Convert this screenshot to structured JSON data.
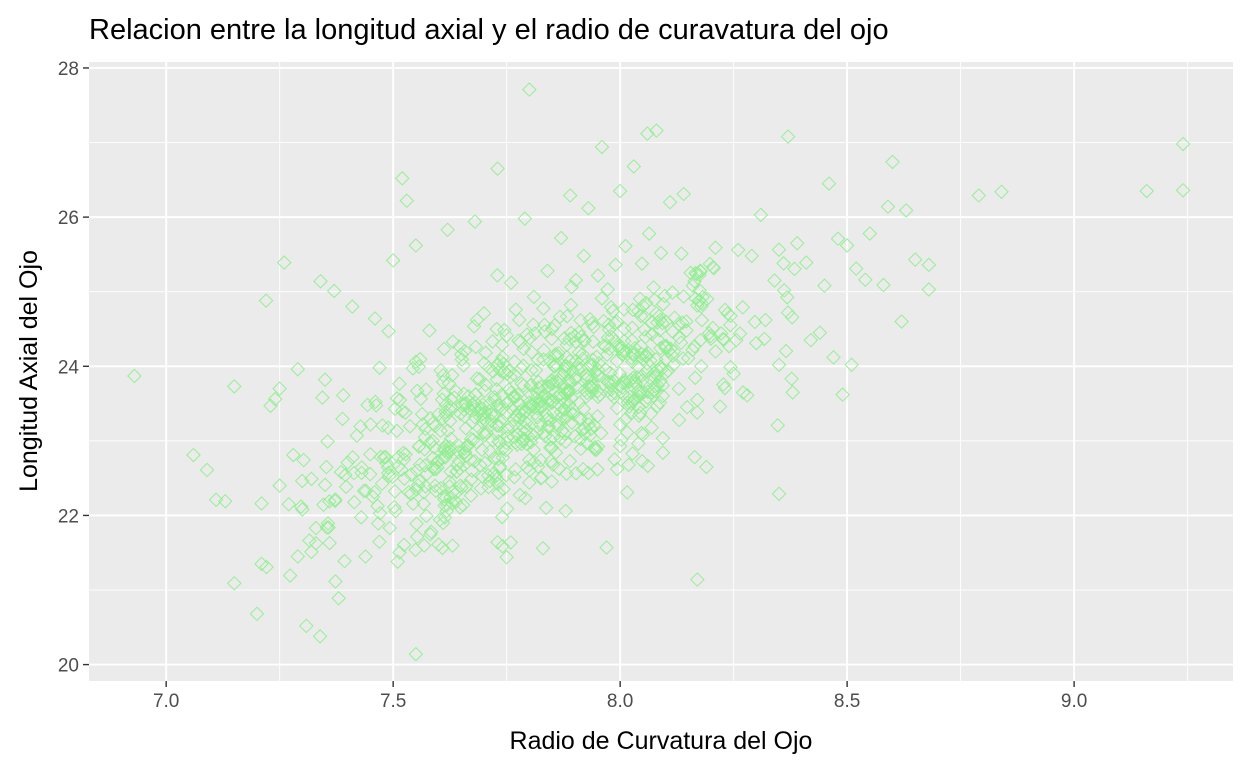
{
  "chart_data": {
    "type": "scatter",
    "title": "Relacion entre la longitud axial y el radio de curavatura del ojo",
    "xlabel": "Radio de Curvatura del Ojo",
    "ylabel": "Longitud Axial del Ojo",
    "xlim": [
      6.83,
      9.35
    ],
    "ylim": [
      19.78,
      28.08
    ],
    "x_ticks": [
      "7.0",
      "7.5",
      "8.0",
      "8.5",
      "9.0"
    ],
    "y_ticks": [
      "20",
      "22",
      "24",
      "26",
      "28"
    ],
    "grid": true,
    "marker": "open-diamond",
    "point_color": "#90ee90",
    "panel_color": "#ebebeb",
    "grid_color": "#ffffff",
    "points": [
      [
        6.93,
        23.87
      ],
      [
        7.06,
        22.81
      ],
      [
        7.09,
        22.61
      ],
      [
        7.11,
        22.21
      ],
      [
        7.13,
        22.19
      ],
      [
        7.15,
        23.73
      ],
      [
        7.15,
        21.09
      ],
      [
        7.2,
        20.68
      ],
      [
        7.21,
        22.16
      ],
      [
        7.21,
        21.35
      ],
      [
        7.22,
        24.88
      ],
      [
        7.23,
        23.47
      ],
      [
        7.24,
        23.56
      ],
      [
        7.25,
        23.7
      ],
      [
        7.26,
        25.39
      ],
      [
        7.25,
        22.4
      ],
      [
        7.27,
        22.15
      ],
      [
        7.28,
        22.81
      ],
      [
        7.29,
        23.96
      ],
      [
        7.29,
        21.45
      ],
      [
        7.3,
        22.08
      ],
      [
        7.32,
        22.49
      ],
      [
        7.33,
        21.83
      ],
      [
        7.34,
        25.14
      ],
      [
        7.35,
        23.82
      ],
      [
        7.35,
        22.41
      ],
      [
        7.36,
        21.63
      ],
      [
        7.37,
        25.01
      ],
      [
        7.38,
        20.89
      ],
      [
        7.39,
        23.61
      ],
      [
        7.4,
        22.71
      ],
      [
        7.41,
        24.8
      ],
      [
        7.42,
        23.07
      ],
      [
        7.44,
        22.33
      ],
      [
        7.45,
        23.22
      ],
      [
        7.46,
        24.64
      ],
      [
        7.47,
        23.98
      ],
      [
        7.48,
        22.78
      ],
      [
        7.49,
        24.47
      ],
      [
        7.5,
        25.42
      ],
      [
        7.51,
        21.38
      ],
      [
        7.52,
        23.4
      ],
      [
        7.52,
        26.52
      ],
      [
        7.53,
        26.22
      ],
      [
        7.54,
        22.29
      ],
      [
        7.55,
        24.06
      ],
      [
        7.55,
        25.62
      ],
      [
        7.55,
        20.14
      ],
      [
        7.57,
        23.05
      ],
      [
        7.58,
        24.48
      ],
      [
        7.59,
        22.62
      ],
      [
        7.6,
        21.61
      ],
      [
        7.61,
        23.3
      ],
      [
        7.62,
        25.83
      ],
      [
        7.63,
        23.88
      ],
      [
        7.64,
        22.31
      ],
      [
        7.65,
        24.16
      ],
      [
        7.66,
        23.51
      ],
      [
        7.67,
        22.75
      ],
      [
        7.68,
        25.94
      ],
      [
        7.69,
        23.17
      ],
      [
        7.7,
        24.71
      ],
      [
        7.71,
        22.38
      ],
      [
        7.72,
        23.93
      ],
      [
        7.73,
        21.64
      ],
      [
        7.73,
        26.65
      ],
      [
        7.74,
        23.62
      ],
      [
        7.75,
        21.44
      ],
      [
        7.76,
        25.12
      ],
      [
        7.77,
        22.98
      ],
      [
        7.78,
        24.32
      ],
      [
        7.79,
        23.38
      ],
      [
        7.79,
        25.98
      ],
      [
        7.8,
        22.44
      ],
      [
        7.8,
        27.71
      ],
      [
        7.81,
        24.93
      ],
      [
        7.82,
        23.71
      ],
      [
        7.83,
        21.56
      ],
      [
        7.84,
        25.28
      ],
      [
        7.85,
        22.91
      ],
      [
        7.85,
        24.5
      ],
      [
        7.86,
        23.22
      ],
      [
        7.87,
        25.72
      ],
      [
        7.88,
        23.96
      ],
      [
        7.88,
        22.06
      ],
      [
        7.89,
        26.29
      ],
      [
        7.9,
        24.41
      ],
      [
        7.91,
        23.51
      ],
      [
        7.92,
        25.48
      ],
      [
        7.93,
        22.57
      ],
      [
        7.93,
        26.12
      ],
      [
        7.94,
        24.02
      ],
      [
        7.95,
        23.33
      ],
      [
        7.96,
        24.91
      ],
      [
        7.96,
        26.94
      ],
      [
        7.97,
        21.57
      ],
      [
        7.98,
        23.79
      ],
      [
        7.99,
        25.36
      ],
      [
        8.0,
        22.93
      ],
      [
        8.0,
        26.35
      ],
      [
        8.01,
        24.19
      ],
      [
        8.02,
        23.46
      ],
      [
        8.03,
        26.68
      ],
      [
        8.04,
        24.74
      ],
      [
        8.05,
        23.08
      ],
      [
        8.06,
        27.12
      ],
      [
        8.07,
        24.43
      ],
      [
        8.08,
        23.66
      ],
      [
        8.08,
        27.16
      ],
      [
        8.09,
        25.52
      ],
      [
        8.1,
        23.91
      ],
      [
        8.11,
        26.2
      ],
      [
        8.12,
        24.65
      ],
      [
        8.13,
        23.28
      ],
      [
        8.14,
        26.31
      ],
      [
        8.15,
        24.11
      ],
      [
        8.16,
        25.08
      ],
      [
        8.17,
        23.55
      ],
      [
        8.17,
        21.14
      ],
      [
        8.18,
        24.84
      ],
      [
        8.19,
        22.65
      ],
      [
        8.2,
        24.37
      ],
      [
        8.21,
        25.59
      ],
      [
        8.22,
        23.46
      ],
      [
        8.24,
        24.27
      ],
      [
        8.25,
        23.9
      ],
      [
        8.26,
        25.56
      ],
      [
        8.27,
        24.79
      ],
      [
        8.28,
        23.61
      ],
      [
        8.29,
        25.48
      ],
      [
        8.3,
        24.31
      ],
      [
        8.31,
        26.03
      ],
      [
        8.32,
        24.62
      ],
      [
        8.34,
        25.15
      ],
      [
        8.35,
        24.02
      ],
      [
        8.35,
        22.29
      ],
      [
        8.36,
        25.38
      ],
      [
        8.37,
        24.72
      ],
      [
        8.37,
        27.08
      ],
      [
        8.38,
        23.65
      ],
      [
        8.39,
        25.65
      ],
      [
        8.41,
        25.39
      ],
      [
        8.42,
        24.35
      ],
      [
        8.44,
        24.45
      ],
      [
        8.45,
        25.08
      ],
      [
        8.46,
        26.45
      ],
      [
        8.47,
        24.12
      ],
      [
        8.48,
        25.71
      ],
      [
        8.49,
        23.62
      ],
      [
        8.5,
        25.62
      ],
      [
        8.51,
        24.02
      ],
      [
        8.52,
        25.31
      ],
      [
        8.54,
        25.16
      ],
      [
        8.55,
        25.78
      ],
      [
        8.58,
        25.09
      ],
      [
        8.59,
        26.14
      ],
      [
        8.6,
        26.74
      ],
      [
        8.62,
        24.6
      ],
      [
        8.63,
        26.09
      ],
      [
        8.65,
        25.43
      ],
      [
        8.68,
        25.36
      ],
      [
        8.68,
        25.03
      ],
      [
        8.79,
        26.29
      ],
      [
        8.84,
        26.34
      ],
      [
        9.16,
        26.35
      ],
      [
        9.24,
        26.98
      ],
      [
        9.24,
        26.36
      ]
    ]
  }
}
